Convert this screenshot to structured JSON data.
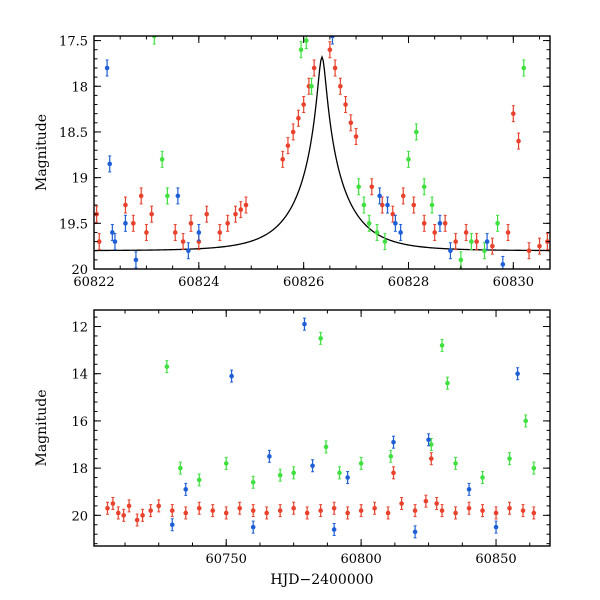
{
  "chart_data": [
    {
      "type": "scatter",
      "panel": "top",
      "ylabel": "Magnitude",
      "xlabel": "",
      "xlim": [
        60822.0,
        60830.7
      ],
      "ylim": [
        20.0,
        17.45
      ],
      "y_inverted": true,
      "x_ticks": [
        60822,
        60824,
        60826,
        60828,
        60830
      ],
      "x_tick_labels": [
        "60822",
        "60824",
        "60826",
        "60828",
        "60830"
      ],
      "y_ticks": [
        17.5,
        18,
        18.5,
        19,
        19.5,
        20
      ],
      "y_tick_labels": [
        "17.5",
        "18",
        "18.5",
        "19",
        "19.5",
        "20"
      ],
      "model_curve": {
        "name": "microlensing model",
        "color": "#000000",
        "baseline_mag": 19.8,
        "peak_mag": 17.68,
        "t0": 60826.35,
        "tE": 0.9
      },
      "series": [
        {
          "color": "#e8412c",
          "points": [
            [
              60822.05,
              19.4
            ],
            [
              60822.1,
              19.7
            ],
            [
              60822.6,
              19.3
            ],
            [
              60822.75,
              19.5
            ],
            [
              60822.9,
              19.2
            ],
            [
              60823.0,
              19.6
            ],
            [
              60823.1,
              19.4
            ],
            [
              60823.55,
              19.6
            ],
            [
              60823.7,
              19.7
            ],
            [
              60823.85,
              19.5
            ],
            [
              60824.0,
              19.7
            ],
            [
              60824.15,
              19.4
            ],
            [
              60824.4,
              19.6
            ],
            [
              60824.55,
              19.5
            ],
            [
              60824.7,
              19.4
            ],
            [
              60824.8,
              19.35
            ],
            [
              60824.9,
              19.3
            ],
            [
              60825.6,
              18.8
            ],
            [
              60825.7,
              18.65
            ],
            [
              60825.8,
              18.5
            ],
            [
              60825.9,
              18.35
            ],
            [
              60826.0,
              18.2
            ],
            [
              60826.1,
              18.0
            ],
            [
              60826.2,
              17.8
            ],
            [
              60826.5,
              17.6
            ],
            [
              60826.6,
              17.8
            ],
            [
              60826.7,
              18.0
            ],
            [
              60826.8,
              18.2
            ],
            [
              60826.9,
              18.4
            ],
            [
              60827.0,
              18.55
            ],
            [
              60827.3,
              19.1
            ],
            [
              60827.5,
              19.3
            ],
            [
              60827.7,
              19.4
            ],
            [
              60827.9,
              19.2
            ],
            [
              60828.1,
              19.3
            ],
            [
              60828.3,
              19.5
            ],
            [
              60828.5,
              19.6
            ],
            [
              60828.7,
              19.5
            ],
            [
              60828.9,
              19.7
            ],
            [
              60829.1,
              19.6
            ],
            [
              60829.3,
              19.7
            ],
            [
              60829.6,
              19.75
            ],
            [
              60829.9,
              19.6
            ],
            [
              60830.0,
              18.3
            ],
            [
              60830.1,
              18.6
            ],
            [
              60830.3,
              19.8
            ],
            [
              60830.5,
              19.75
            ],
            [
              60830.65,
              19.7
            ]
          ]
        },
        {
          "color": "#2e9a2e",
          "display_color": "#3fe03f",
          "points": [
            [
              60823.15,
              17.45
            ],
            [
              60823.3,
              18.8
            ],
            [
              60823.4,
              19.2
            ],
            [
              60825.95,
              17.6
            ],
            [
              60826.05,
              17.5
            ],
            [
              60826.15,
              18.0
            ],
            [
              60827.05,
              19.1
            ],
            [
              60827.15,
              19.3
            ],
            [
              60827.25,
              19.5
            ],
            [
              60827.4,
              19.6
            ],
            [
              60827.55,
              19.7
            ],
            [
              60828.0,
              18.8
            ],
            [
              60828.15,
              18.5
            ],
            [
              60828.3,
              19.1
            ],
            [
              60828.45,
              19.3
            ],
            [
              60829.0,
              19.9
            ],
            [
              60829.2,
              19.7
            ],
            [
              60829.45,
              19.8
            ],
            [
              60829.7,
              19.5
            ],
            [
              60830.2,
              17.8
            ]
          ]
        },
        {
          "color": "#1f5fd6",
          "points": [
            [
              60822.25,
              17.8
            ],
            [
              60822.3,
              18.85
            ],
            [
              60822.35,
              19.6
            ],
            [
              60822.4,
              19.7
            ],
            [
              60822.6,
              19.5
            ],
            [
              60822.8,
              19.9
            ],
            [
              60823.6,
              19.2
            ],
            [
              60823.8,
              19.8
            ],
            [
              60824.0,
              19.6
            ],
            [
              60826.55,
              17.45
            ],
            [
              60827.45,
              19.2
            ],
            [
              60827.6,
              19.3
            ],
            [
              60827.75,
              19.5
            ],
            [
              60827.85,
              19.6
            ],
            [
              60828.6,
              19.5
            ],
            [
              60828.8,
              19.8
            ],
            [
              60829.5,
              19.7
            ],
            [
              60829.8,
              19.95
            ]
          ]
        }
      ]
    },
    {
      "type": "scatter",
      "panel": "bottom",
      "ylabel": "Magnitude",
      "xlabel": "HJD−2400000",
      "xlim": [
        60701,
        60870
      ],
      "ylim": [
        21.3,
        11.3
      ],
      "y_inverted": true,
      "x_ticks": [
        60750,
        60800,
        60850
      ],
      "x_tick_labels": [
        "60750",
        "60800",
        "60850"
      ],
      "y_ticks": [
        12,
        14,
        16,
        18,
        20
      ],
      "y_tick_labels": [
        "12",
        "14",
        "16",
        "18",
        "20"
      ],
      "series": [
        {
          "color": "#e8412c",
          "points": [
            [
              60706,
              19.7
            ],
            [
              60708,
              19.5
            ],
            [
              60710,
              19.9
            ],
            [
              60712,
              20.0
            ],
            [
              60714,
              19.6
            ],
            [
              60717,
              20.2
            ],
            [
              60719,
              20.0
            ],
            [
              60722,
              19.8
            ],
            [
              60725,
              19.6
            ],
            [
              60730,
              19.8
            ],
            [
              60735,
              19.9
            ],
            [
              60740,
              19.7
            ],
            [
              60745,
              19.8
            ],
            [
              60750,
              19.9
            ],
            [
              60755,
              19.7
            ],
            [
              60760,
              19.8
            ],
            [
              60765,
              19.9
            ],
            [
              60770,
              19.8
            ],
            [
              60775,
              19.7
            ],
            [
              60780,
              19.9
            ],
            [
              60785,
              19.8
            ],
            [
              60790,
              19.7
            ],
            [
              60795,
              19.9
            ],
            [
              60800,
              19.8
            ],
            [
              60805,
              19.7
            ],
            [
              60810,
              19.9
            ],
            [
              60812,
              18.2
            ],
            [
              60815,
              19.5
            ],
            [
              60820,
              19.8
            ],
            [
              60824,
              19.4
            ],
            [
              60826,
              17.6
            ],
            [
              60828,
              19.5
            ],
            [
              60830,
              19.8
            ],
            [
              60835,
              19.9
            ],
            [
              60840,
              19.7
            ],
            [
              60845,
              19.8
            ],
            [
              60850,
              19.9
            ],
            [
              60855,
              19.7
            ],
            [
              60860,
              19.8
            ],
            [
              60864,
              19.9
            ]
          ]
        },
        {
          "color": "#2e9a2e",
          "display_color": "#3fe03f",
          "points": [
            [
              60728,
              13.7
            ],
            [
              60733,
              18.0
            ],
            [
              60740,
              18.5
            ],
            [
              60750,
              17.8
            ],
            [
              60760,
              18.6
            ],
            [
              60770,
              18.3
            ],
            [
              60775,
              18.2
            ],
            [
              60785,
              12.5
            ],
            [
              60787,
              17.1
            ],
            [
              60792,
              18.2
            ],
            [
              60800,
              17.8
            ],
            [
              60811,
              17.5
            ],
            [
              60826,
              17.0
            ],
            [
              60830,
              12.8
            ],
            [
              60832,
              14.4
            ],
            [
              60835,
              17.8
            ],
            [
              60845,
              18.4
            ],
            [
              60855,
              17.6
            ],
            [
              60861,
              16.0
            ],
            [
              60864,
              18.0
            ]
          ]
        },
        {
          "color": "#1f5fd6",
          "points": [
            [
              60735,
              18.9
            ],
            [
              60752,
              14.1
            ],
            [
              60766,
              17.5
            ],
            [
              60779,
              11.9
            ],
            [
              60782,
              17.9
            ],
            [
              60795,
              18.4
            ],
            [
              60812,
              16.9
            ],
            [
              60825,
              16.8
            ],
            [
              60840,
              18.9
            ],
            [
              60858,
              14.0
            ],
            [
              60730,
              20.4
            ],
            [
              60760,
              20.5
            ],
            [
              60790,
              20.6
            ],
            [
              60820,
              20.7
            ],
            [
              60850,
              20.5
            ]
          ]
        }
      ]
    }
  ]
}
